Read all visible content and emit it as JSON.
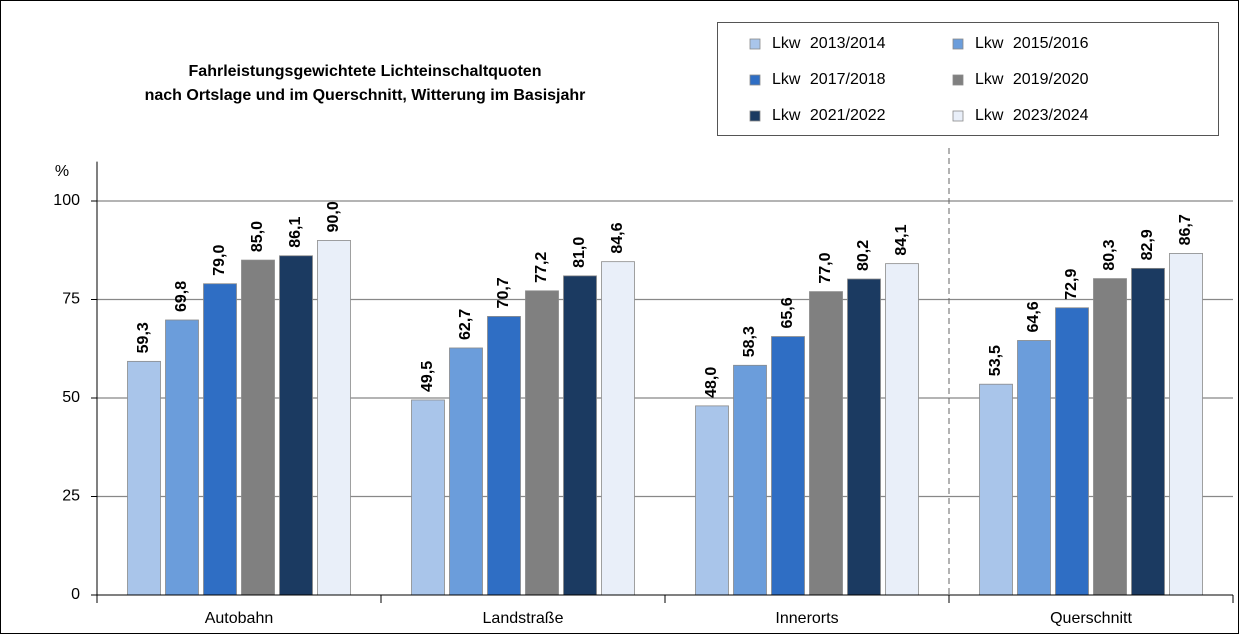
{
  "chart_data": {
    "type": "bar",
    "title": [
      "Fahrleistungsgewichtete Lichteinschaltquoten",
      "nach Ortslage und im Querschnitt, Witterung im Basisjahr"
    ],
    "y_label": "%",
    "categories": [
      "Autobahn",
      "Landstraße",
      "Innerorts",
      "Querschnitt"
    ],
    "series": [
      {
        "name": "Lkw 2013/2014",
        "color": "#a9c5ea",
        "values": [
          59.3,
          49.5,
          48.0,
          53.5
        ],
        "value_labels": [
          "59,3",
          "49,5",
          "48,0",
          "53,5"
        ]
      },
      {
        "name": "Lkw 2015/2016",
        "color": "#6b9ddb",
        "values": [
          69.8,
          62.7,
          58.3,
          64.6
        ],
        "value_labels": [
          "69,8",
          "62,7",
          "58,3",
          "64,6"
        ]
      },
      {
        "name": "Lkw 2017/2018",
        "color": "#2f6ec4",
        "values": [
          79.0,
          70.7,
          65.6,
          72.9
        ],
        "value_labels": [
          "79,0",
          "70,7",
          "65,6",
          "72,9"
        ]
      },
      {
        "name": "Lkw 2019/2020",
        "color": "#808080",
        "values": [
          85.0,
          77.2,
          77.0,
          80.3
        ],
        "value_labels": [
          "85,0",
          "77,2",
          "77,0",
          "80,3"
        ]
      },
      {
        "name": "Lkw 2021/2022",
        "color": "#1b3a61",
        "values": [
          86.1,
          81.0,
          80.2,
          82.9
        ],
        "value_labels": [
          "86,1",
          "81,0",
          "80,2",
          "82,9"
        ]
      },
      {
        "name": "Lkw 2023/2024",
        "color": "#e9eff9",
        "values": [
          90.0,
          84.6,
          84.1,
          86.7
        ],
        "value_labels": [
          "90,0",
          "84,6",
          "84,1",
          "86,7"
        ]
      }
    ],
    "ylim": [
      0,
      110
    ],
    "yticks": [
      0,
      25,
      50,
      75,
      100
    ],
    "grid": true,
    "legend": "top-right"
  }
}
